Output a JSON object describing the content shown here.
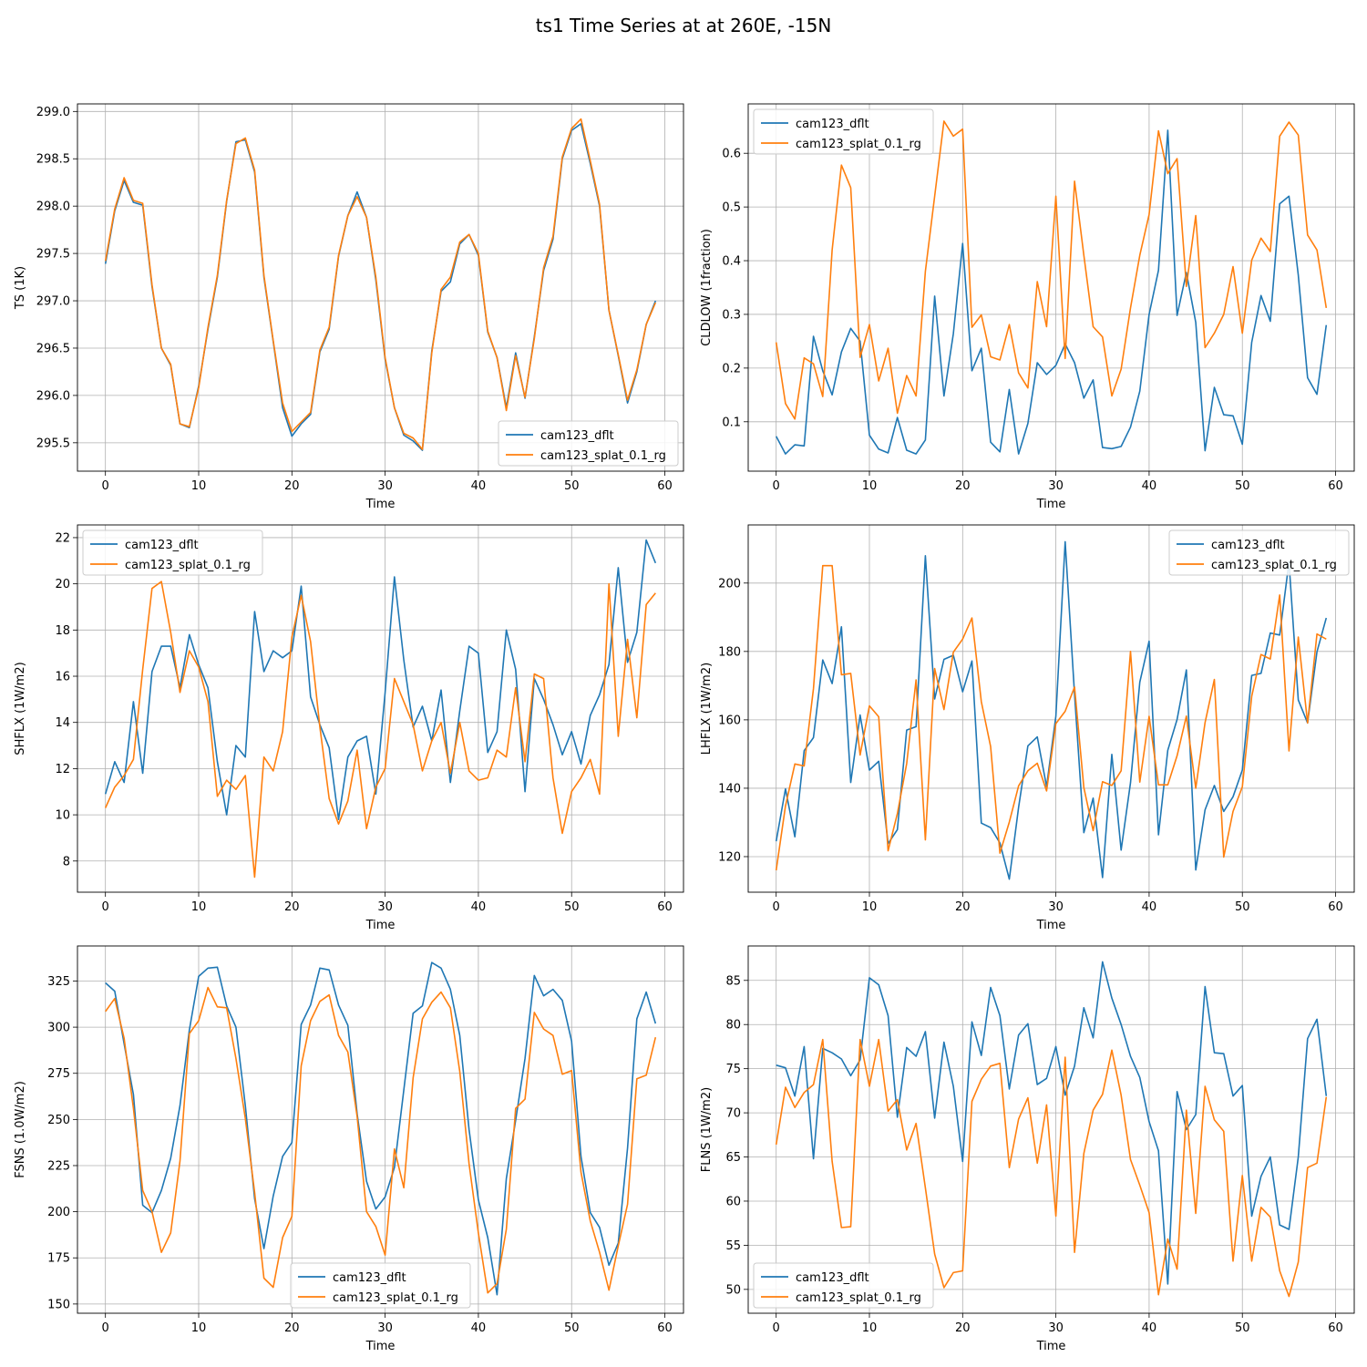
{
  "figure": {
    "title": "ts1 Time Series at at 260E, -15N"
  },
  "colors": {
    "series0": "#1f77b4",
    "series1": "#ff7f0e",
    "grid": "#b0b0b0",
    "axes": "#000000"
  },
  "chart_data": [
    {
      "type": "line",
      "title": "",
      "xlabel": "Time",
      "ylabel": "TS (1K)",
      "xlim": [
        -3,
        62
      ],
      "ylim": [
        295.2,
        299.08
      ],
      "xticks": [
        0,
        10,
        20,
        30,
        40,
        50,
        60
      ],
      "yticks": [
        295.5,
        296.0,
        296.5,
        297.0,
        297.5,
        298.0,
        298.5,
        299.0
      ],
      "ytick_labels": [
        "295.5",
        "296.0",
        "296.5",
        "297.0",
        "297.5",
        "298.0",
        "298.5",
        "299.0"
      ],
      "grid": true,
      "legend_position": "lower-right",
      "series": [
        {
          "name": "cam123_dflt",
          "values": [
            297.39,
            297.95,
            298.27,
            298.04,
            298.01,
            297.15,
            296.5,
            296.32,
            295.7,
            295.66,
            296.1,
            296.7,
            297.25,
            298.05,
            298.68,
            298.7,
            298.36,
            297.25,
            296.57,
            295.87,
            295.57,
            295.7,
            295.8,
            296.46,
            296.7,
            297.47,
            297.9,
            298.15,
            297.88,
            297.22,
            296.38,
            295.87,
            295.58,
            295.52,
            295.42,
            296.47,
            297.1,
            297.2,
            297.6,
            297.7,
            297.48,
            296.67,
            296.4,
            295.87,
            296.45,
            295.97,
            296.62,
            297.32,
            297.65,
            298.5,
            298.8,
            298.87,
            298.45,
            298.0,
            296.9,
            296.42,
            295.92,
            296.25,
            296.75,
            297.0
          ]
        },
        {
          "name": "cam123_splat_0.1_rg",
          "values": [
            297.42,
            297.97,
            298.3,
            298.06,
            298.03,
            297.17,
            296.5,
            296.33,
            295.7,
            295.67,
            296.08,
            296.72,
            297.27,
            298.06,
            298.66,
            298.72,
            298.38,
            297.27,
            296.58,
            295.92,
            295.62,
            295.72,
            295.82,
            296.48,
            296.72,
            297.48,
            297.9,
            298.1,
            297.88,
            297.25,
            296.4,
            295.87,
            295.6,
            295.55,
            295.43,
            296.45,
            297.12,
            297.25,
            297.62,
            297.7,
            297.5,
            296.68,
            296.4,
            295.84,
            296.42,
            295.98,
            296.6,
            297.35,
            297.68,
            298.52,
            298.82,
            298.92,
            298.48,
            298.02,
            296.9,
            296.43,
            295.95,
            296.27,
            296.75,
            296.98
          ]
        }
      ]
    },
    {
      "type": "line",
      "title": "",
      "xlabel": "Time",
      "ylabel": "CLDLOW (1fraction)",
      "xlim": [
        -3,
        62
      ],
      "ylim": [
        0.008,
        0.692
      ],
      "xticks": [
        0,
        10,
        20,
        30,
        40,
        50,
        60
      ],
      "yticks": [
        0.1,
        0.2,
        0.3,
        0.4,
        0.5,
        0.6
      ],
      "ytick_labels": [
        "0.1",
        "0.2",
        "0.3",
        "0.4",
        "0.5",
        "0.6"
      ],
      "grid": true,
      "legend_position": "upper-left",
      "series": [
        {
          "name": "cam123_dflt",
          "values": [
            0.073,
            0.04,
            0.057,
            0.055,
            0.259,
            0.195,
            0.15,
            0.23,
            0.274,
            0.25,
            0.075,
            0.049,
            0.042,
            0.108,
            0.047,
            0.04,
            0.066,
            0.334,
            0.148,
            0.264,
            0.432,
            0.195,
            0.237,
            0.062,
            0.044,
            0.16,
            0.04,
            0.097,
            0.21,
            0.188,
            0.205,
            0.245,
            0.21,
            0.144,
            0.178,
            0.052,
            0.05,
            0.054,
            0.09,
            0.157,
            0.3,
            0.382,
            0.643,
            0.298,
            0.378,
            0.285,
            0.046,
            0.164,
            0.113,
            0.111,
            0.058,
            0.248,
            0.335,
            0.287,
            0.506,
            0.52,
            0.373,
            0.182,
            0.151,
            0.28
          ]
        },
        {
          "name": "cam123_splat_0.1_rg",
          "values": [
            0.248,
            0.134,
            0.105,
            0.219,
            0.208,
            0.147,
            0.42,
            0.578,
            0.536,
            0.22,
            0.281,
            0.176,
            0.237,
            0.116,
            0.186,
            0.148,
            0.38,
            0.52,
            0.66,
            0.632,
            0.645,
            0.276,
            0.299,
            0.221,
            0.215,
            0.281,
            0.191,
            0.163,
            0.361,
            0.277,
            0.52,
            0.218,
            0.548,
            0.41,
            0.277,
            0.258,
            0.148,
            0.198,
            0.312,
            0.41,
            0.486,
            0.642,
            0.562,
            0.59,
            0.352,
            0.484,
            0.238,
            0.265,
            0.3,
            0.389,
            0.265,
            0.401,
            0.442,
            0.417,
            0.632,
            0.658,
            0.634,
            0.448,
            0.42,
            0.312
          ]
        }
      ]
    },
    {
      "type": "line",
      "title": "",
      "xlabel": "Time",
      "ylabel": "SHFLX (1W/m2)",
      "xlim": [
        -3,
        62
      ],
      "ylim": [
        6.65,
        22.55
      ],
      "xticks": [
        0,
        10,
        20,
        30,
        40,
        50,
        60
      ],
      "yticks": [
        8,
        10,
        12,
        14,
        16,
        18,
        20,
        22
      ],
      "ytick_labels": [
        "8",
        "10",
        "12",
        "14",
        "16",
        "18",
        "20",
        "22"
      ],
      "grid": true,
      "legend_position": "upper-left",
      "series": [
        {
          "name": "cam123_dflt",
          "values": [
            10.9,
            12.3,
            11.4,
            14.9,
            11.8,
            16.2,
            17.3,
            17.3,
            15.5,
            17.8,
            16.5,
            15.5,
            12.3,
            10.0,
            13.0,
            12.5,
            18.8,
            16.2,
            17.1,
            16.8,
            17.1,
            19.9,
            15.1,
            13.9,
            12.9,
            9.8,
            12.5,
            13.2,
            13.4,
            10.9,
            15.3,
            20.3,
            16.7,
            13.8,
            14.7,
            13.2,
            15.4,
            11.4,
            14.5,
            17.3,
            17.0,
            12.7,
            13.6,
            18.0,
            16.3,
            11.0,
            15.9,
            15.0,
            13.9,
            12.6,
            13.6,
            12.2,
            14.3,
            15.2,
            16.5,
            20.7,
            16.6,
            17.9,
            21.9,
            20.9
          ]
        },
        {
          "name": "cam123_splat_0.1_rg",
          "values": [
            10.3,
            11.2,
            11.7,
            12.4,
            16.3,
            19.8,
            20.1,
            17.9,
            15.3,
            17.1,
            16.4,
            14.9,
            10.8,
            11.5,
            11.1,
            11.7,
            7.3,
            12.5,
            11.9,
            13.6,
            17.7,
            19.5,
            17.5,
            13.8,
            10.7,
            9.6,
            10.6,
            12.8,
            9.4,
            11.2,
            12.0,
            15.9,
            14.9,
            13.9,
            11.9,
            13.2,
            14.0,
            11.8,
            14.0,
            11.9,
            11.5,
            11.6,
            12.8,
            12.5,
            15.5,
            12.3,
            16.1,
            15.9,
            11.6,
            9.2,
            11.0,
            11.6,
            12.4,
            10.9,
            20.0,
            13.4,
            17.6,
            14.2,
            19.1,
            19.6
          ]
        }
      ]
    },
    {
      "type": "line",
      "title": "",
      "xlabel": "Time",
      "ylabel": "LHFLX (1W/m2)",
      "xlim": [
        -3,
        62
      ],
      "ylim": [
        109.6,
        217.0
      ],
      "xticks": [
        0,
        10,
        20,
        30,
        40,
        50,
        60
      ],
      "yticks": [
        120,
        140,
        160,
        180,
        200
      ],
      "ytick_labels": [
        "120",
        "140",
        "160",
        "180",
        "200"
      ],
      "grid": true,
      "legend_position": "upper-right",
      "series": [
        {
          "name": "cam123_dflt",
          "values": [
            124.5,
            139.8,
            125.8,
            151.0,
            154.8,
            177.5,
            170.6,
            187.2,
            141.7,
            161.4,
            145.3,
            147.9,
            123.8,
            127.9,
            157.0,
            158.0,
            208.0,
            166.1,
            177.7,
            178.9,
            168.2,
            177.2,
            129.8,
            128.5,
            124.0,
            113.4,
            134.4,
            152.4,
            155.0,
            140.5,
            161.1,
            212.1,
            167.4,
            127.0,
            137.1,
            113.9,
            149.9,
            121.9,
            141.6,
            171.0,
            183.0,
            126.4,
            151.1,
            160.1,
            174.6,
            116.1,
            133.7,
            140.8,
            133.2,
            137.5,
            145.3,
            173.0,
            173.6,
            185.4,
            184.8,
            206.2,
            165.8,
            159.1,
            179.9,
            189.8
          ]
        },
        {
          "name": "cam123_splat_0.1_rg",
          "values": [
            116.0,
            134.8,
            147.1,
            146.5,
            169.1,
            205.1,
            205.1,
            173.2,
            173.6,
            149.7,
            164.1,
            160.9,
            121.7,
            132.6,
            147.2,
            171.7,
            124.9,
            175.0,
            163.0,
            179.8,
            183.6,
            189.8,
            165.3,
            152.2,
            121.0,
            130.1,
            140.7,
            145.1,
            147.3,
            139.2,
            158.9,
            162.5,
            169.6,
            140.2,
            127.6,
            141.9,
            140.8,
            145.1,
            180.0,
            141.8,
            161.0,
            141.0,
            141.0,
            149.5,
            161.1,
            140.0,
            159.2,
            171.8,
            119.9,
            133.2,
            140.4,
            166.9,
            179.1,
            177.8,
            196.5,
            150.9,
            184.2,
            159.1,
            185.1,
            183.6
          ]
        }
      ]
    },
    {
      "type": "line",
      "title": "",
      "xlabel": "Time",
      "ylabel": "FSNS (1.0W/m2)",
      "xlim": [
        -3,
        62
      ],
      "ylim": [
        145.0,
        344.0
      ],
      "xticks": [
        0,
        10,
        20,
        30,
        40,
        50,
        60
      ],
      "yticks": [
        150,
        175,
        200,
        225,
        250,
        275,
        300,
        325
      ],
      "ytick_labels": [
        "150",
        "175",
        "200",
        "225",
        "250",
        "275",
        "300",
        "325"
      ],
      "grid": true,
      "legend_position": "lower-center",
      "series": [
        {
          "name": "cam123_dflt",
          "values": [
            324.0,
            319.5,
            291.0,
            263.5,
            203.5,
            199.5,
            211.5,
            229.0,
            257.5,
            298.5,
            327.5,
            332.0,
            332.5,
            311.5,
            300.0,
            257.5,
            207.0,
            180.0,
            208.5,
            230.0,
            237.5,
            301.5,
            312.0,
            332.0,
            331.0,
            312.0,
            301.0,
            253.0,
            216.5,
            201.5,
            208.0,
            224.0,
            266.0,
            307.5,
            311.5,
            335.0,
            332.0,
            320.5,
            295.5,
            244.5,
            206.5,
            186.0,
            155.0,
            218.0,
            249.5,
            283.0,
            328.0,
            317.0,
            320.5,
            314.5,
            292.5,
            230.0,
            199.5,
            191.5,
            171.0,
            183.0,
            234.5,
            304.5,
            319.0,
            302.0
          ]
        },
        {
          "name": "cam123_splat_0.1_rg",
          "values": [
            308.5,
            315.5,
            294.0,
            256.0,
            211.5,
            200.0,
            178.0,
            188.5,
            227.5,
            296.5,
            303.5,
            321.5,
            311.0,
            310.5,
            283.0,
            250.5,
            210.5,
            164.0,
            159.0,
            186.0,
            197.5,
            279.0,
            303.5,
            314.0,
            317.5,
            295.5,
            286.5,
            251.5,
            200.0,
            192.0,
            176.5,
            234.0,
            213.0,
            272.5,
            304.5,
            313.5,
            319.0,
            310.5,
            276.0,
            226.0,
            188.5,
            156.0,
            161.0,
            190.5,
            256.0,
            261.0,
            308.0,
            299.0,
            295.5,
            274.5,
            276.5,
            221.5,
            195.0,
            178.0,
            157.5,
            181.5,
            204.0,
            272.0,
            274.0,
            294.5
          ]
        }
      ]
    },
    {
      "type": "line",
      "title": "",
      "xlabel": "Time",
      "ylabel": "FLNS (1W/m2)",
      "xlim": [
        -3,
        62
      ],
      "ylim": [
        47.3,
        88.9
      ],
      "xticks": [
        0,
        10,
        20,
        30,
        40,
        50,
        60
      ],
      "yticks": [
        50,
        55,
        60,
        65,
        70,
        75,
        80,
        85
      ],
      "ytick_labels": [
        "50",
        "55",
        "60",
        "65",
        "70",
        "75",
        "80",
        "85"
      ],
      "grid": true,
      "legend_position": "lower-left",
      "series": [
        {
          "name": "cam123_dflt",
          "values": [
            75.4,
            75.1,
            71.9,
            77.5,
            64.8,
            77.3,
            76.8,
            76.1,
            74.2,
            76.0,
            85.3,
            84.5,
            81.0,
            69.5,
            77.4,
            76.4,
            79.2,
            69.4,
            78.0,
            73.0,
            64.5,
            80.3,
            76.5,
            84.2,
            81.0,
            72.7,
            78.8,
            80.1,
            73.2,
            73.9,
            77.5,
            72.0,
            75.3,
            81.9,
            78.5,
            87.1,
            83.0,
            80.0,
            76.4,
            74.0,
            69.0,
            65.7,
            50.6,
            72.4,
            68.1,
            69.8,
            84.3,
            76.8,
            76.7,
            71.9,
            73.1,
            58.3,
            62.8,
            65.0,
            57.3,
            56.8,
            65.0,
            78.4,
            80.6,
            71.9
          ]
        },
        {
          "name": "cam123_splat_0.1_rg",
          "values": [
            66.4,
            72.9,
            70.6,
            72.3,
            73.2,
            78.3,
            64.5,
            57.0,
            57.1,
            78.3,
            73.0,
            78.3,
            70.2,
            71.5,
            65.8,
            68.8,
            61.5,
            54.0,
            50.2,
            51.9,
            52.1,
            71.3,
            73.8,
            75.3,
            75.6,
            63.8,
            69.3,
            71.7,
            64.3,
            70.9,
            58.3,
            76.3,
            54.2,
            65.4,
            70.3,
            72.1,
            77.1,
            72.0,
            64.7,
            61.8,
            58.7,
            49.4,
            55.7,
            52.3,
            70.3,
            58.6,
            73.0,
            69.2,
            67.9,
            53.2,
            62.9,
            53.2,
            59.3,
            58.2,
            52.1,
            49.2,
            53.1,
            63.8,
            64.3,
            71.8
          ]
        }
      ]
    }
  ]
}
